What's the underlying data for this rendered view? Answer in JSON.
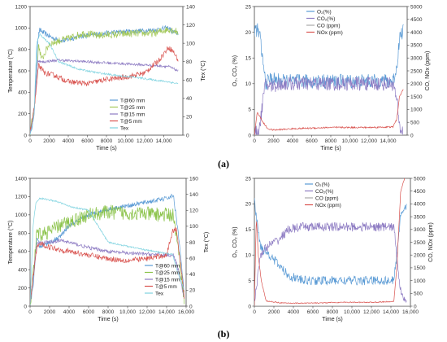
{
  "panels": [
    {
      "label": "(a)"
    },
    {
      "label": "(b)"
    }
  ],
  "chart_data": [
    {
      "type": "line",
      "panel": "(a)",
      "xlabel": "Time (s)",
      "ylabel": "Temperature (°C)",
      "y2label": "Tex (°C)",
      "xlim": [
        0,
        16000
      ],
      "ylim": [
        0,
        1200
      ],
      "y2lim": [
        0,
        140
      ],
      "xticks": [
        0,
        2000,
        4000,
        6000,
        8000,
        10000,
        12000,
        14000
      ],
      "xtick_labels": [
        "0",
        "2000",
        "4000",
        "6000",
        "8000",
        "10,000",
        "12,000",
        "14,000"
      ],
      "yticks": [
        0,
        200,
        400,
        600,
        800,
        1000,
        1200
      ],
      "y2ticks": [
        0,
        20,
        40,
        60,
        80,
        100,
        120,
        140
      ],
      "legend_position": "bottom-center",
      "series": [
        {
          "name": "T@60 mm",
          "color": "#5b9bd5",
          "axis": "left",
          "noise": 25,
          "x": [
            0,
            400,
            800,
            1000,
            1500,
            2500,
            3500,
            5000,
            7000,
            9000,
            11000,
            13000,
            14500,
            15000,
            15500
          ],
          "y": [
            20,
            150,
            900,
            980,
            950,
            900,
            880,
            920,
            940,
            960,
            970,
            980,
            1000,
            960,
            950
          ]
        },
        {
          "name": "T@25 mm",
          "color": "#a5c95a",
          "axis": "left",
          "noise": 35,
          "x": [
            0,
            500,
            900,
            1200,
            2000,
            3000,
            4000,
            5500,
            7000,
            9000,
            11000,
            13000,
            14500,
            15000,
            15500
          ],
          "y": [
            20,
            300,
            850,
            700,
            850,
            880,
            900,
            950,
            930,
            940,
            950,
            950,
            990,
            980,
            960
          ]
        },
        {
          "name": "T@15 mm",
          "color": "#8e7cc3",
          "axis": "left",
          "noise": 12,
          "x": [
            0,
            400,
            800,
            1200,
            2000,
            3000,
            5000,
            7000,
            9000,
            11000,
            13000,
            14500,
            15000,
            15500
          ],
          "y": [
            20,
            200,
            700,
            680,
            690,
            700,
            690,
            680,
            670,
            660,
            650,
            640,
            620,
            600
          ]
        },
        {
          "name": "T@5 mm",
          "color": "#d9534f",
          "axis": "left",
          "noise": 25,
          "x": [
            0,
            500,
            900,
            1500,
            2500,
            4000,
            6000,
            8000,
            10000,
            12000,
            13500,
            14500,
            15000,
            15500
          ],
          "y": [
            20,
            300,
            650,
            580,
            560,
            500,
            480,
            520,
            540,
            580,
            700,
            820,
            780,
            700
          ]
        },
        {
          "name": "Tex",
          "color": "#7fd3e0",
          "axis": "right",
          "noise": 1,
          "x": [
            0,
            400,
            700,
            1000,
            2000,
            3000,
            5000,
            7000,
            9000,
            11000,
            13000,
            14500,
            15500
          ],
          "y": [
            0,
            20,
            100,
            110,
            100,
            80,
            72,
            68,
            65,
            63,
            60,
            58,
            56
          ]
        }
      ]
    },
    {
      "type": "line",
      "panel": "(a)",
      "xlabel": "Time (s)",
      "ylabel": "O₂, CO₂ (%)",
      "y2label": "CO, NOx (ppm)",
      "xlim": [
        0,
        16000
      ],
      "ylim": [
        0,
        25
      ],
      "y2lim": [
        0,
        5000
      ],
      "xticks": [
        0,
        2000,
        4000,
        6000,
        8000,
        10000,
        12000,
        14000
      ],
      "xtick_labels": [
        "0",
        "2000",
        "4000",
        "6000",
        "8000",
        "10,000",
        "12,000",
        "14,000"
      ],
      "yticks": [
        0,
        5,
        10,
        15,
        20,
        25
      ],
      "y2ticks": [
        0,
        500,
        1000,
        1500,
        2000,
        2500,
        3000,
        3500,
        4000,
        4500,
        5000
      ],
      "legend_position": "top-center",
      "series": [
        {
          "name": "O₂(%)",
          "color": "#5b9bd5",
          "axis": "left",
          "noise": 1.4,
          "x": [
            0,
            300,
            600,
            900,
            1200,
            1600,
            3000,
            6000,
            9000,
            12000,
            14500,
            14900,
            15200,
            15600
          ],
          "y": [
            20.5,
            20.5,
            19,
            14,
            10,
            11,
            10.5,
            10.5,
            10.5,
            10.5,
            10.5,
            13,
            19,
            20.5
          ]
        },
        {
          "name": "CO₂(%)",
          "color": "#8e7cc3",
          "axis": "left",
          "noise": 1.4,
          "x": [
            0,
            300,
            600,
            900,
            1200,
            1600,
            3000,
            6000,
            9000,
            12000,
            14500,
            14900,
            15200,
            15600
          ],
          "y": [
            0.2,
            0.5,
            2,
            7,
            10,
            9.5,
            10,
            10,
            10,
            10,
            10,
            7,
            1.5,
            0.5
          ]
        },
        {
          "name": "CO (ppm)",
          "color": "#aaaaaa",
          "axis": "right",
          "noise": 0,
          "x": [
            0,
            15600
          ],
          "y": [
            10,
            10
          ]
        },
        {
          "name": "NOx (ppm)",
          "color": "#d9534f",
          "axis": "right",
          "noise": 30,
          "x": [
            0,
            300,
            600,
            900,
            1400,
            2000,
            4000,
            8000,
            12000,
            14500,
            14900,
            15200,
            15600
          ],
          "y": [
            0,
            900,
            700,
            500,
            250,
            200,
            250,
            300,
            300,
            320,
            600,
            1500,
            1800
          ]
        }
      ]
    },
    {
      "type": "line",
      "panel": "(b)",
      "xlabel": "Time (s)",
      "ylabel": "Temperature (°C)",
      "y2label": "Tex (°C)",
      "xlim": [
        0,
        16000
      ],
      "ylim": [
        0,
        1400
      ],
      "y2lim": [
        0,
        160
      ],
      "xticks": [
        0,
        2000,
        4000,
        6000,
        8000,
        10000,
        12000,
        14000,
        16000
      ],
      "xtick_labels": [
        "0",
        "2000",
        "4000",
        "6000",
        "8000",
        "10,000",
        "12,000",
        "14,000",
        "16,000"
      ],
      "yticks": [
        0,
        200,
        400,
        600,
        800,
        1000,
        1200,
        1400
      ],
      "y2ticks": [
        0,
        20,
        40,
        60,
        80,
        100,
        120,
        140,
        160
      ],
      "legend_position": "bottom-right",
      "series": [
        {
          "name": "T@60 mm",
          "color": "#5b9bd5",
          "axis": "left",
          "noise": 25,
          "x": [
            0,
            300,
            700,
            1000,
            2000,
            3000,
            4000,
            6000,
            8000,
            10000,
            12000,
            14000,
            14700,
            15200,
            15800
          ],
          "y": [
            20,
            200,
            750,
            650,
            700,
            750,
            880,
            1000,
            1060,
            1100,
            1140,
            1180,
            1210,
            800,
            150
          ]
        },
        {
          "name": "T@25 mm",
          "color": "#8bc34a",
          "axis": "left",
          "noise": 80,
          "x": [
            0,
            300,
            700,
            1000,
            2000,
            3000,
            4000,
            6000,
            8000,
            10000,
            12000,
            14000,
            14700,
            15200,
            15800
          ],
          "y": [
            20,
            300,
            800,
            780,
            820,
            880,
            920,
            1000,
            1030,
            1020,
            1010,
            1000,
            1000,
            600,
            100
          ]
        },
        {
          "name": "T@15 mm",
          "color": "#8e7cc3",
          "axis": "left",
          "noise": 20,
          "x": [
            0,
            300,
            700,
            1000,
            2000,
            3000,
            4000,
            6000,
            8000,
            10000,
            12000,
            14000,
            14700,
            15200,
            15800
          ],
          "y": [
            20,
            300,
            700,
            690,
            700,
            720,
            700,
            640,
            600,
            580,
            570,
            560,
            560,
            400,
            80
          ]
        },
        {
          "name": "T@5 mm",
          "color": "#d9534f",
          "axis": "left",
          "noise": 30,
          "x": [
            0,
            300,
            700,
            1000,
            2000,
            3000,
            4000,
            6000,
            8000,
            10000,
            12000,
            14000,
            14600,
            15000,
            15500,
            15800
          ],
          "y": [
            20,
            300,
            650,
            680,
            650,
            620,
            600,
            560,
            520,
            500,
            520,
            560,
            820,
            850,
            400,
            100
          ]
        },
        {
          "name": "Tex",
          "color": "#7fd3e0",
          "axis": "right",
          "noise": 1,
          "x": [
            0,
            300,
            600,
            1000,
            2000,
            3000,
            4000,
            6000,
            8000,
            10000,
            12000,
            14000,
            14600,
            15200,
            15800
          ],
          "y": [
            0,
            100,
            130,
            135,
            133,
            130,
            125,
            120,
            80,
            75,
            70,
            66,
            65,
            40,
            20
          ]
        }
      ]
    },
    {
      "type": "line",
      "panel": "(b)",
      "xlabel": "Time (s)",
      "ylabel": "O₂, CO₂ (%)",
      "y2label": "CO, NOx (ppm)",
      "xlim": [
        0,
        16000
      ],
      "ylim": [
        0,
        25
      ],
      "y2lim": [
        0,
        5000
      ],
      "xticks": [
        0,
        2000,
        4000,
        6000,
        8000,
        10000,
        12000,
        14000,
        16000
      ],
      "xtick_labels": [
        "0",
        "2000",
        "4000",
        "6000",
        "8000",
        "10,000",
        "12,000",
        "14,000",
        "16,000"
      ],
      "yticks": [
        0,
        5,
        10,
        15,
        20,
        25
      ],
      "y2ticks": [
        0,
        500,
        1000,
        1500,
        2000,
        2500,
        3000,
        3500,
        4000,
        4500,
        5000
      ],
      "legend_position": "top-center",
      "series": [
        {
          "name": "O₂(%)",
          "color": "#5b9bd5",
          "axis": "left",
          "noise": 0.9,
          "x": [
            0,
            300,
            600,
            1000,
            1600,
            2500,
            3500,
            5000,
            7000,
            9000,
            11000,
            13000,
            14300,
            14600,
            15000,
            15600
          ],
          "y": [
            20.5,
            16,
            12,
            11,
            10,
            8,
            6,
            5,
            5,
            5,
            5,
            5,
            5,
            10,
            18,
            20
          ]
        },
        {
          "name": "CO₂(%)",
          "color": "#8e7cc3",
          "axis": "left",
          "noise": 0.9,
          "x": [
            0,
            300,
            600,
            1000,
            1600,
            2500,
            3500,
            5000,
            7000,
            9000,
            11000,
            13000,
            14300,
            14600,
            15000,
            15600
          ],
          "y": [
            0.5,
            5,
            10,
            11,
            12,
            13,
            15,
            15.5,
            15.5,
            15.5,
            15.5,
            15.5,
            15.5,
            10,
            3,
            1
          ]
        },
        {
          "name": "CO (ppm)",
          "color": "#aaaaaa",
          "axis": "right",
          "noise": 0,
          "x": [
            0,
            16000
          ],
          "y": [
            10,
            10
          ]
        },
        {
          "name": "NOx (ppm)",
          "color": "#d9534f",
          "axis": "right",
          "noise": 20,
          "x": [
            0,
            200,
            400,
            700,
            1200,
            3000,
            6000,
            9000,
            12000,
            14300,
            14600,
            15000,
            15400
          ],
          "y": [
            0,
            3500,
            2000,
            1000,
            200,
            120,
            120,
            150,
            150,
            180,
            1500,
            4500,
            5000
          ]
        }
      ]
    }
  ]
}
